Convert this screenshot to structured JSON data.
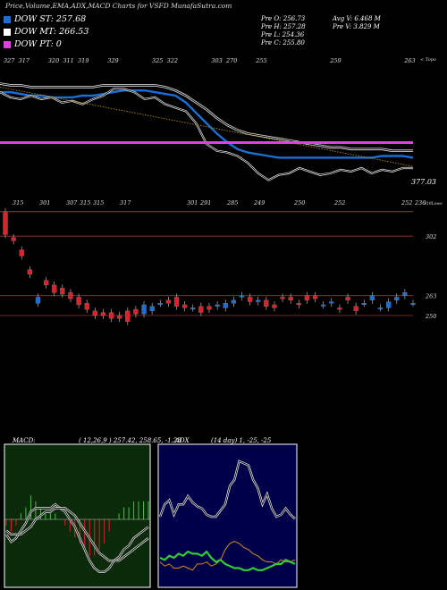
{
  "header": "Price,Volume,EMA,ADX,MACD Charts for VSFD MunafaSutra.com",
  "legend": [
    {
      "label": "DOW ST: 257.68",
      "color": "#1a6fd6"
    },
    {
      "label": "DOW MT: 266.53",
      "color": "#ffffff"
    },
    {
      "label": "DOW PT: 0",
      "color": "#e040e0"
    }
  ],
  "stats": {
    "prev_open": "Pre   O: 256.73",
    "prev_high": "Pre   H: 257.28",
    "prev_low": "Pre   L: 254.36",
    "prev_close": "Pre   C: 255.80",
    "avg_volume": "Avg V: 6.468  M",
    "prev_volume": "Pre   V: 3.829  M"
  },
  "colors": {
    "background": "#000000",
    "ema_short": "#1a6fd6",
    "ema_mid": "#ffffff",
    "ema_long_pt": "#e040e0",
    "long_trend": "#b8860b",
    "candle_up": "#1a6fd6",
    "candle_down": "#e0202a",
    "level_line": "#c0393b",
    "macd_panel_bg": "#0a2a0a",
    "adx_panel_bg": "#00004a"
  },
  "top_strip_labels": [
    "327",
    "317",
    "",
    "320",
    "311",
    "319",
    "",
    "329",
    "",
    "",
    "325",
    "322",
    "",
    "",
    "303",
    "270",
    "",
    "255",
    "",
    "",
    "",
    "",
    "259",
    "",
    "",
    "",
    "",
    "263"
  ],
  "top_strip_right_label": "< Topo",
  "ema_value_label": "377.03",
  "mid_strip_labels": [
    "315",
    "",
    "301",
    "",
    "307",
    "315",
    "315",
    "",
    "317",
    "",
    "",
    "",
    "",
    "301",
    "291",
    "",
    "285",
    "",
    "249",
    "",
    "",
    "250",
    "",
    "",
    "252",
    "",
    "",
    "",
    "",
    "252",
    "236"
  ],
  "mid_strip_right_label": "319Lowe",
  "price_levels": [
    {
      "label": "302",
      "value": 302
    },
    {
      "label": "263",
      "value": 263
    },
    {
      "label": "250",
      "value": 250
    }
  ],
  "macd": {
    "title": "MACD:",
    "params": "( 12,26,9 ) 257.42,  258.65,  -1.23"
  },
  "adx": {
    "title": "ADX",
    "params": "(14  day) 1,  -25,  -25"
  },
  "chart_data": [
    {
      "type": "line",
      "title": "Price / EMA",
      "series": [
        {
          "name": "DOW ST",
          "values": [
            300,
            300,
            299,
            298,
            298,
            297,
            297,
            297,
            298,
            298,
            299,
            300,
            301,
            301,
            301,
            300,
            299,
            298,
            294,
            288,
            282,
            276,
            271,
            267,
            265,
            264,
            263,
            262,
            262,
            262,
            262,
            262,
            262,
            262,
            262,
            262,
            262,
            263,
            263,
            263,
            262
          ]
        },
        {
          "name": "DOW MT",
          "values": [
            305,
            304,
            304,
            303,
            303,
            303,
            303,
            303,
            303,
            303,
            304,
            304,
            304,
            304,
            304,
            304,
            303,
            301,
            298,
            294,
            290,
            285,
            281,
            278,
            276,
            275,
            274,
            273,
            272,
            271,
            270,
            269,
            268,
            268,
            267,
            267,
            267,
            267,
            266,
            266,
            266
          ]
        },
        {
          "name": "Close",
          "values": [
            300,
            297,
            296,
            298,
            296,
            297,
            294,
            295,
            293,
            296,
            298,
            302,
            302,
            300,
            296,
            297,
            293,
            291,
            289,
            282,
            270,
            266,
            265,
            263,
            259,
            253,
            249,
            252,
            253,
            256,
            254,
            252,
            253,
            255,
            254,
            256,
            253,
            255,
            254,
            256,
            256
          ]
        }
      ]
    },
    {
      "type": "bar",
      "title": "Candles",
      "categories": [
        "1",
        "2",
        "3",
        "4",
        "5",
        "6",
        "7",
        "8",
        "9",
        "10",
        "11",
        "12",
        "13",
        "14",
        "15",
        "16",
        "17",
        "18",
        "19",
        "20",
        "21",
        "22",
        "23",
        "24",
        "25",
        "26",
        "27",
        "28",
        "29",
        "30",
        "31",
        "32",
        "33",
        "34",
        "35",
        "36",
        "37",
        "38",
        "39",
        "40",
        "41",
        "42",
        "43",
        "44",
        "45",
        "46",
        "47",
        "48",
        "49",
        "50",
        "51"
      ],
      "series": [
        {
          "name": "open",
          "values": [
            318,
            301,
            293,
            280,
            258,
            273,
            270,
            268,
            265,
            262,
            258,
            253,
            252,
            252,
            250,
            253,
            254,
            251,
            253,
            258,
            260,
            262,
            257,
            255,
            256,
            256,
            256,
            255,
            258,
            262,
            262,
            259,
            260,
            257,
            262,
            262,
            258,
            263,
            263,
            257,
            258,
            255,
            262,
            256,
            258,
            260,
            255,
            255,
            260,
            263,
            258
          ]
        },
        {
          "name": "close",
          "values": [
            303,
            299,
            289,
            277,
            262,
            270,
            265,
            264,
            261,
            257,
            254,
            250,
            250,
            248,
            248,
            246,
            251,
            257,
            256,
            258,
            258,
            256,
            255,
            255,
            252,
            254,
            257,
            258,
            260,
            263,
            259,
            260,
            256,
            255,
            261,
            260,
            257,
            260,
            261,
            257,
            259,
            254,
            260,
            253,
            258,
            263,
            255,
            259,
            262,
            265,
            258
          ]
        }
      ]
    },
    {
      "type": "line",
      "title": "MACD",
      "series": [
        {
          "name": "MACD",
          "values": [
            -4,
            -6,
            -5,
            -3,
            -1,
            2,
            3,
            3,
            3,
            3,
            4,
            3,
            2,
            0,
            -2,
            -5,
            -8,
            -11,
            -13,
            -14,
            -14,
            -13,
            -11,
            -10,
            -8,
            -7,
            -5,
            -4,
            -3,
            -2
          ]
        },
        {
          "name": "Signal",
          "values": [
            -3,
            -4,
            -4,
            -4,
            -3,
            -2,
            0,
            1,
            2,
            2,
            3,
            3,
            3,
            2,
            1,
            -1,
            -3,
            -5,
            -7,
            -9,
            -10,
            -11,
            -11,
            -11,
            -10,
            -9,
            -8,
            -7,
            -6,
            -5
          ]
        }
      ]
    },
    {
      "type": "line",
      "title": "ADX",
      "series": [
        {
          "name": "ADX",
          "values": [
            30,
            36,
            38,
            31,
            36,
            36,
            40,
            37,
            35,
            34,
            31,
            30,
            30,
            33,
            36,
            45,
            48,
            57,
            56,
            55,
            48,
            44,
            36,
            41,
            34,
            30,
            31,
            34,
            31,
            29
          ]
        },
        {
          "name": "+DI",
          "values": [
            8,
            6,
            7,
            5,
            5,
            6,
            5,
            4,
            7,
            7,
            8,
            6,
            7,
            9,
            14,
            17,
            18,
            17,
            15,
            14,
            12,
            11,
            9,
            8,
            8,
            7,
            9,
            8,
            8,
            9
          ]
        },
        {
          "name": "-DI",
          "values": [
            10,
            9,
            11,
            10,
            12,
            11,
            13,
            12,
            12,
            11,
            13,
            10,
            8,
            9,
            7,
            6,
            5,
            5,
            4,
            4,
            5,
            4,
            4,
            5,
            6,
            7,
            7,
            9,
            8,
            7
          ]
        }
      ]
    }
  ]
}
